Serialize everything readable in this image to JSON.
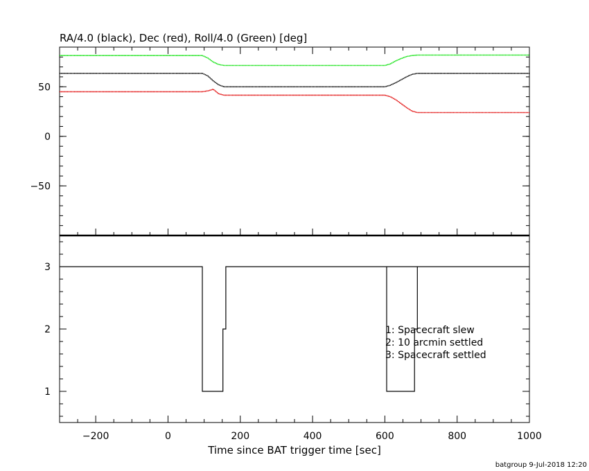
{
  "title": "RA/4.0 (black), Dec (red), Roll/4.0 (Green) [deg]",
  "footer": "batgroup  9-Jul-2018 12:20",
  "colors": {
    "ra": "#000000",
    "dec": "#e00000",
    "roll": "#00e000",
    "axis": "#000000"
  },
  "chart_data": [
    {
      "type": "line",
      "title": "RA/4.0 (black), Dec (red), Roll/4.0 (Green) [deg]",
      "xlabel": "",
      "ylabel": "",
      "xlim": [
        -300,
        1000
      ],
      "ylim": [
        -100,
        90
      ],
      "yticks": [
        -50,
        0,
        50
      ],
      "series": [
        {
          "name": "RA/4.0",
          "color": "#000000",
          "x": [
            -300,
            95,
            110,
            125,
            140,
            155,
            600,
            615,
            630,
            645,
            660,
            675,
            690,
            1000
          ],
          "y": [
            63.5,
            63.5,
            61,
            56,
            52,
            50,
            50,
            51.5,
            54,
            57,
            60,
            62.5,
            63.5,
            63.5
          ]
        },
        {
          "name": "Dec",
          "color": "#e00000",
          "x": [
            -300,
            95,
            112,
            125,
            140,
            155,
            600,
            615,
            630,
            645,
            660,
            675,
            690,
            1000
          ],
          "y": [
            45,
            45,
            46,
            47.5,
            43,
            41.5,
            41.5,
            40,
            37,
            33,
            29,
            25.5,
            24,
            24
          ]
        },
        {
          "name": "Roll/4.0",
          "color": "#00e000",
          "x": [
            -300,
            95,
            110,
            125,
            140,
            155,
            600,
            615,
            630,
            645,
            660,
            675,
            690,
            1000
          ],
          "y": [
            81.5,
            81.5,
            79,
            75,
            72.5,
            71.5,
            71.5,
            73,
            76,
            78.5,
            80.5,
            81.5,
            82,
            82
          ]
        }
      ]
    },
    {
      "type": "line",
      "xlabel": "Time since BAT trigger time [sec]",
      "ylabel": "",
      "xlim": [
        -300,
        1000
      ],
      "ylim": [
        0.5,
        3.5
      ],
      "yticks": [
        1,
        2,
        3
      ],
      "xticks": [
        -200,
        0,
        200,
        400,
        600,
        800,
        1000
      ],
      "legend_lines": [
        "1: Spacecraft slew",
        "2: 10 arcmin settled",
        "3: Spacecraft settled"
      ],
      "series": [
        {
          "x": [
            -300,
            95,
            95,
            152,
            152,
            160,
            160,
            1000
          ],
          "y": [
            3,
            3,
            1,
            1,
            2,
            2,
            3,
            3
          ]
        },
        {
          "x": [
            605,
            605,
            682,
            682,
            690,
            690
          ],
          "y": [
            3,
            1,
            1,
            2,
            2,
            3
          ]
        }
      ]
    }
  ]
}
